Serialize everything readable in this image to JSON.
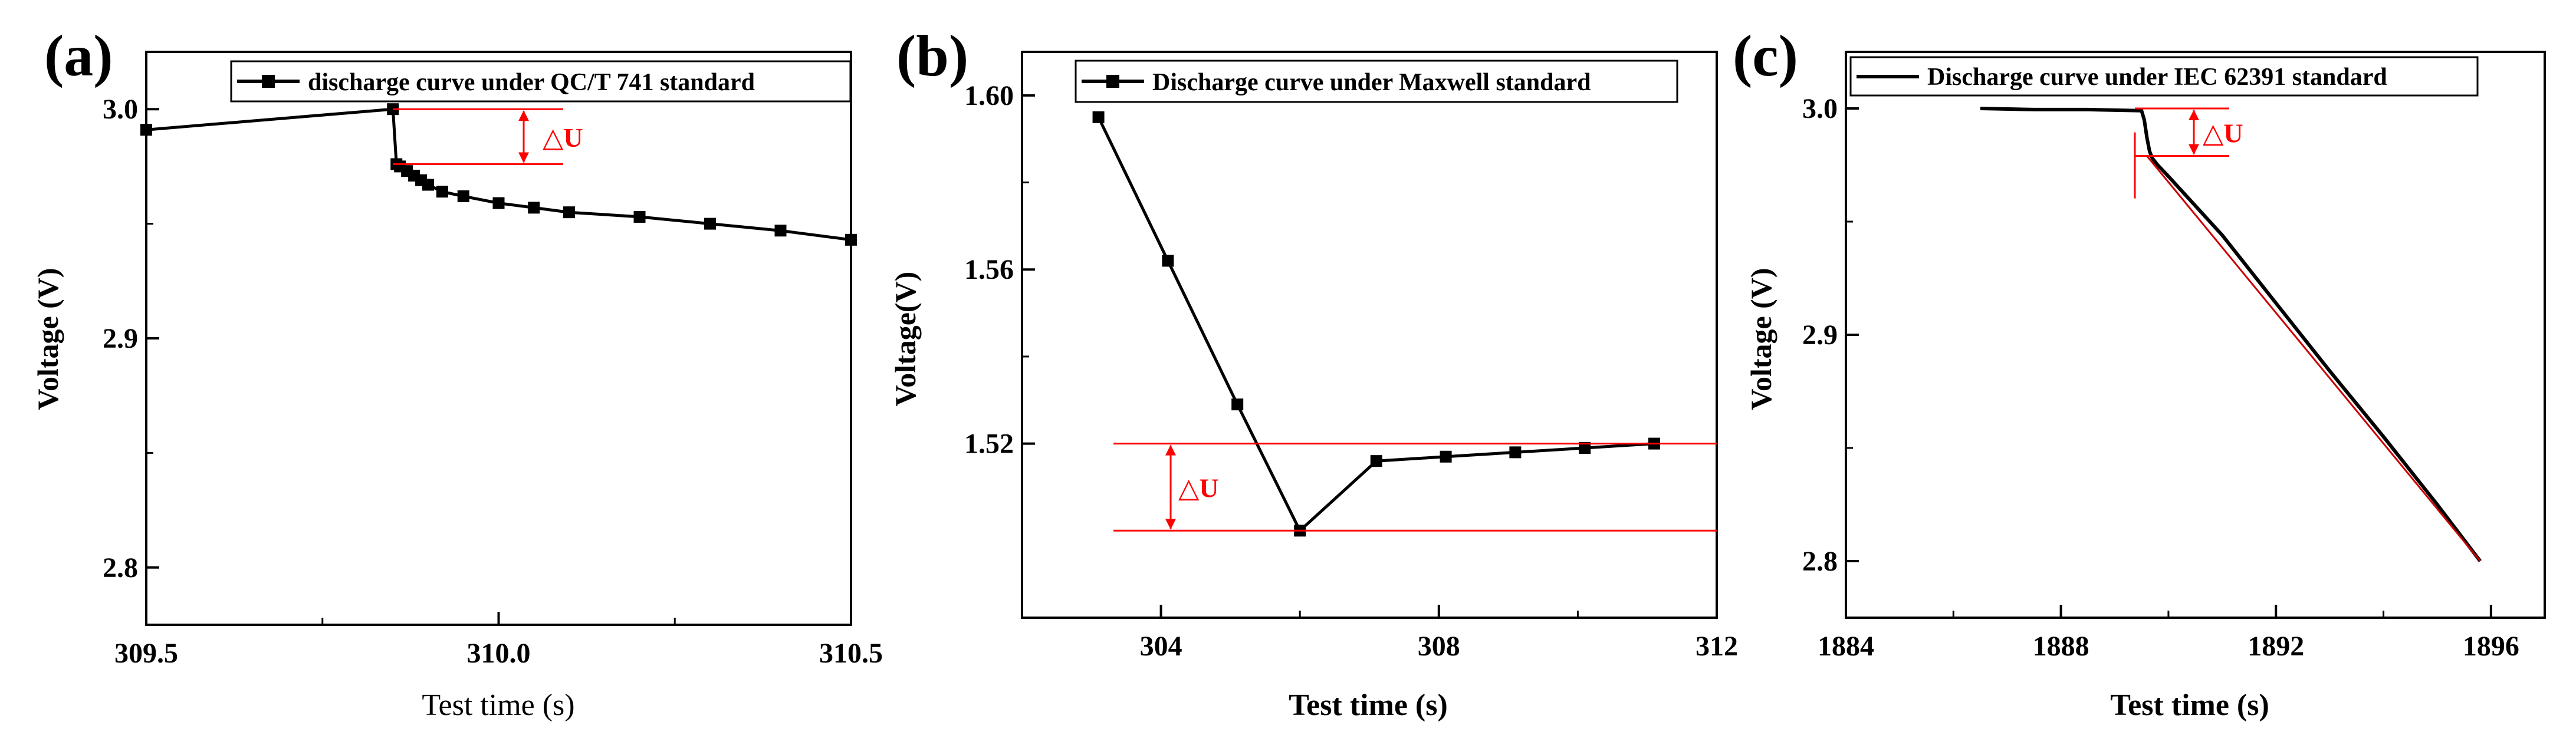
{
  "chart_data": [
    {
      "panel_label": "(a)",
      "type": "line",
      "xlabel": "Test time (s)",
      "ylabel": "Voltage (V)",
      "xlim": [
        309.5,
        310.5
      ],
      "ylim": [
        2.775,
        3.025
      ],
      "xticks": [
        309.5,
        310.0,
        310.5
      ],
      "xtick_labels": [
        "309.5",
        "310.0",
        "310.5"
      ],
      "yticks": [
        2.8,
        2.9,
        3.0
      ],
      "ytick_labels": [
        "2.8",
        "2.9",
        "3.0"
      ],
      "legend": "discharge curve under QC/T 741 standard",
      "legend_position": "top-right",
      "series": [
        {
          "name": "discharge curve under QC/T 741 standard",
          "x": [
            309.5,
            309.85,
            309.855,
            309.86,
            309.87,
            309.88,
            309.89,
            309.9,
            309.92,
            309.95,
            310.0,
            310.05,
            310.1,
            310.2,
            310.3,
            310.4,
            310.5
          ],
          "y": [
            2.991,
            3.0,
            2.976,
            2.975,
            2.973,
            2.971,
            2.969,
            2.967,
            2.964,
            2.962,
            2.959,
            2.957,
            2.955,
            2.953,
            2.95,
            2.947,
            2.943
          ]
        }
      ],
      "annotation": {
        "label": "△U",
        "upper_y": 3.0,
        "lower_y": 2.976
      }
    },
    {
      "panel_label": "(b)",
      "type": "line",
      "xlabel": "Test time (s)",
      "ylabel": "Voltage(V)",
      "xlim": [
        302,
        312
      ],
      "ylim": [
        1.48,
        1.61
      ],
      "xticks": [
        304,
        308,
        312
      ],
      "xtick_labels": [
        "304",
        "308",
        "312"
      ],
      "yticks": [
        1.52,
        1.56,
        1.6
      ],
      "ytick_labels": [
        "1.52",
        "1.56",
        "1.60"
      ],
      "legend": "Discharge curve under Maxwell standard",
      "legend_position": "top-right",
      "series": [
        {
          "name": "Discharge curve under Maxwell standard",
          "x": [
            303.1,
            304.1,
            305.1,
            306.0,
            307.1,
            308.1,
            309.1,
            310.1,
            311.1
          ],
          "y": [
            1.595,
            1.562,
            1.529,
            1.5,
            1.516,
            1.517,
            1.518,
            1.519,
            1.52
          ]
        }
      ],
      "annotation": {
        "label": "△U",
        "upper_y": 1.52,
        "lower_y": 1.5
      }
    },
    {
      "panel_label": "(c)",
      "type": "line",
      "xlabel": "Test time (s)",
      "ylabel": "Voltage (V)",
      "xlim": [
        1884,
        1897
      ],
      "ylim": [
        2.775,
        3.025
      ],
      "xticks": [
        1884,
        1888,
        1892,
        1896
      ],
      "xtick_labels": [
        "1884",
        "1888",
        "1892",
        "1896"
      ],
      "yticks": [
        2.8,
        2.9,
        3.0
      ],
      "ytick_labels": [
        "2.8",
        "2.9",
        "3.0"
      ],
      "legend": "Discharge curve under IEC 62391 standard",
      "legend_position": "top-right",
      "series": [
        {
          "name": "Discharge curve under IEC 62391 standard",
          "x": [
            1886.5,
            1887.5,
            1888.5,
            1889.5,
            1889.55,
            1889.6,
            1889.65,
            1889.7,
            1889.8,
            1890.0,
            1891.0,
            1892.0,
            1893.0,
            1894.0,
            1895.0,
            1895.8
          ],
          "y": [
            3.0,
            2.9995,
            2.9995,
            2.999,
            2.995,
            2.987,
            2.981,
            2.978,
            2.975,
            2.97,
            2.944,
            2.914,
            2.884,
            2.855,
            2.825,
            2.8
          ]
        }
      ],
      "fit_line": {
        "x": [
          1889.6,
          1895.8
        ],
        "y": [
          2.979,
          2.8
        ]
      },
      "annotation": {
        "label": "△U",
        "upper_y": 3.0,
        "lower_y": 2.979
      }
    }
  ]
}
